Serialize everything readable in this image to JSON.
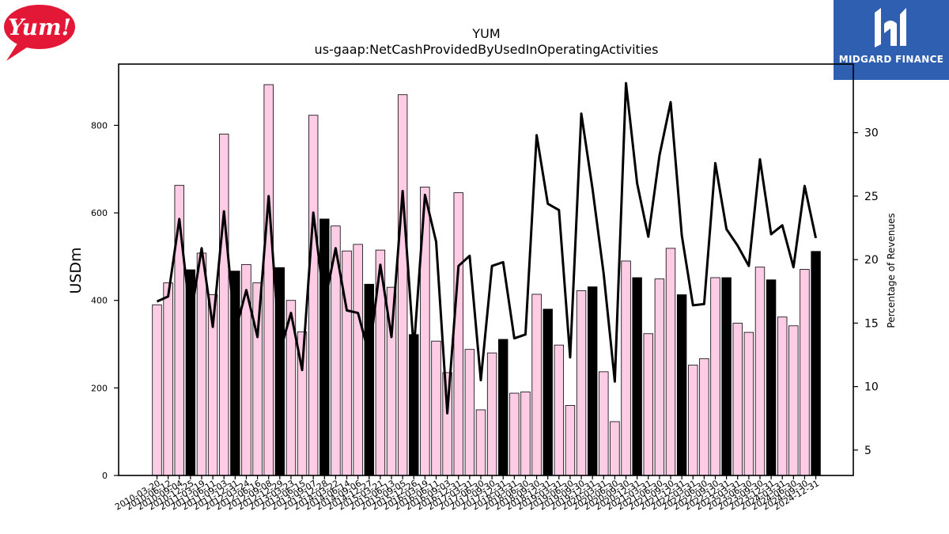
{
  "logos": {
    "left_text": "Yum!",
    "right_text": "MIDGARD FINANCE",
    "brand_red": "#e31837",
    "brand_blue": "#2f5fb0"
  },
  "chart_data": {
    "type": "bar",
    "title": "YUM",
    "subtitle": "us-gaap:NetCashProvidedByUsedInOperatingActivities",
    "ylabel": "USDm",
    "y2label": "Percentage of Revenues",
    "ylim": [
      0,
      940
    ],
    "y2lim": [
      3.0,
      35.4
    ],
    "yticks": [
      0,
      200,
      400,
      600,
      800
    ],
    "y2ticks": [
      5,
      10,
      15,
      20,
      25,
      30
    ],
    "grid": false,
    "colors": {
      "quarter_bar": "#ffcce6",
      "annual_bar": "#000000",
      "line": "#000000",
      "edge": "#000000"
    },
    "categories": [
      "2010-03-20",
      "2010-06-12",
      "2010-09-04",
      "2010-12-25",
      "2011-03-19",
      "2011-06-11",
      "2011-09-03",
      "2011-12-31",
      "2012-03-24",
      "2012-06-16",
      "2012-09-08",
      "2012-12-29",
      "2013-03-23",
      "2013-06-15",
      "2013-09-07",
      "2013-12-28",
      "2014-03-22",
      "2014-06-14",
      "2014-09-06",
      "2014-12-27",
      "2015-03-21",
      "2015-06-13",
      "2015-09-05",
      "2015-12-26",
      "2016-03-19",
      "2016-06-11",
      "2016-09-03",
      "2016-12-31",
      "2017-03-31",
      "2017-06-30",
      "2017-09-30",
      "2017-12-31",
      "2018-03-31",
      "2018-06-30",
      "2018-09-30",
      "2018-12-31",
      "2019-03-31",
      "2019-06-30",
      "2019-09-30",
      "2019-12-31",
      "2020-03-31",
      "2020-06-30",
      "2020-09-30",
      "2020-12-31",
      "2021-03-31",
      "2021-06-30",
      "2021-09-30",
      "2021-12-31",
      "2022-03-31",
      "2022-06-30",
      "2022-09-30",
      "2022-12-31",
      "2023-03-31",
      "2023-06-30",
      "2023-09-30",
      "2023-12-31",
      "2024-03-31",
      "2024-06-30",
      "2024-09-30",
      "2024-12-31"
    ],
    "series": [
      {
        "values": [
          390,
          440,
          663,
          470,
          508,
          413,
          780,
          467,
          482,
          440,
          893,
          475,
          400,
          328,
          823,
          586,
          570,
          513,
          528,
          437,
          515,
          430,
          870,
          322,
          659,
          307,
          235,
          646,
          288,
          150,
          280,
          311,
          188,
          191,
          414,
          380,
          298,
          160,
          422,
          431,
          237,
          123,
          490,
          452,
          324,
          449,
          519,
          413,
          252,
          267,
          452,
          452,
          348,
          327,
          476,
          447,
          362,
          342,
          471,
          512
        ],
        "annual": [
          false,
          false,
          false,
          true,
          false,
          false,
          false,
          true,
          false,
          false,
          false,
          true,
          false,
          false,
          false,
          true,
          false,
          false,
          false,
          true,
          false,
          false,
          false,
          true,
          false,
          false,
          false,
          false,
          false,
          false,
          false,
          true,
          false,
          false,
          false,
          true,
          false,
          false,
          false,
          true,
          false,
          false,
          false,
          true,
          false,
          false,
          false,
          true,
          false,
          false,
          false,
          true,
          false,
          false,
          false,
          true,
          false,
          false,
          false,
          true
        ]
      },
      {
        "axis": "right",
        "values": [
          16.7,
          17.1,
          23.2,
          15.4,
          20.9,
          14.7,
          23.8,
          14.3,
          17.6,
          13.9,
          25.0,
          12.7,
          15.8,
          11.3,
          23.7,
          16.5,
          20.9,
          16.0,
          15.8,
          12.5,
          19.6,
          13.9,
          25.4,
          12.9,
          25.1,
          21.4,
          7.9,
          19.5,
          20.3,
          10.5,
          19.5,
          19.8,
          13.8,
          14.1,
          29.8,
          24.4,
          23.9,
          12.3,
          31.5,
          25.6,
          18.9,
          10.4,
          33.9,
          26.0,
          21.8,
          28.2,
          32.4,
          21.9,
          16.4,
          16.5,
          27.6,
          22.4,
          21.1,
          19.5,
          27.9,
          22.0,
          22.7,
          19.4,
          25.8,
          21.7
        ]
      }
    ]
  }
}
